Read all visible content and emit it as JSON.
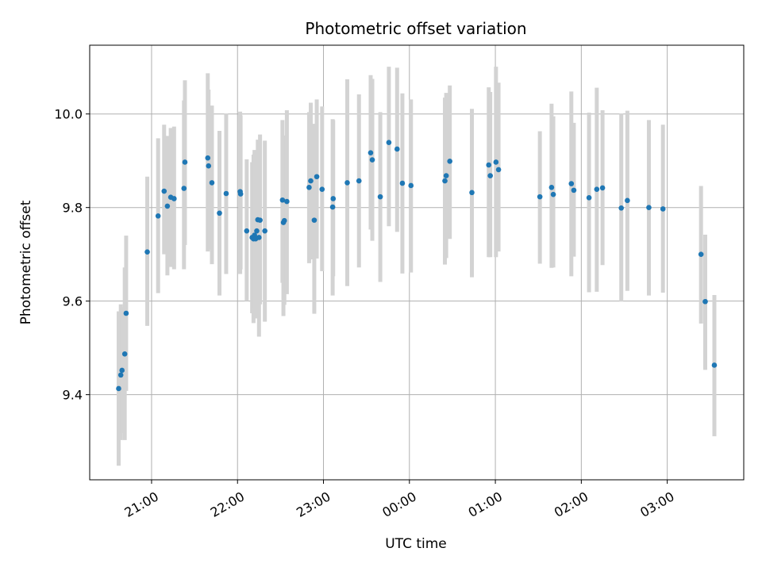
{
  "chart_data": {
    "type": "scatter",
    "title": "Photometric offset variation",
    "xlabel": "UTC time",
    "ylabel": "Photometric offset",
    "x_unit": "hours (UTC, continuing past midnight)",
    "xlim": [
      20.28,
      27.89
    ],
    "ylim": [
      9.218,
      10.147
    ],
    "x_ticks": [
      {
        "value": 21,
        "label": "21:00"
      },
      {
        "value": 22,
        "label": "22:00"
      },
      {
        "value": 23,
        "label": "23:00"
      },
      {
        "value": 24,
        "label": "00:00"
      },
      {
        "value": 25,
        "label": "01:00"
      },
      {
        "value": 26,
        "label": "02:00"
      },
      {
        "value": 27,
        "label": "03:00"
      }
    ],
    "y_ticks": [
      {
        "value": 9.4,
        "label": "9.4"
      },
      {
        "value": 9.6,
        "label": "9.6"
      },
      {
        "value": 9.8,
        "label": "9.8"
      },
      {
        "value": 10.0,
        "label": "10.0"
      }
    ],
    "grid": true,
    "colors": {
      "marker": "#1f77b4",
      "errorbar": "#d3d3d3",
      "grid": "#b0b0b0",
      "axes": "#000000"
    },
    "series": [
      {
        "x": [
          20.617,
          20.642,
          20.656,
          20.688,
          20.704,
          20.95,
          21.076,
          21.146,
          21.184,
          21.223,
          21.262,
          21.377,
          21.388,
          21.654,
          21.663,
          21.702,
          21.79,
          21.868,
          22.031,
          22.036,
          22.107,
          22.17,
          22.186,
          22.198,
          22.211,
          22.224,
          22.236,
          22.25,
          22.262,
          22.318,
          22.523,
          22.534,
          22.545,
          22.574,
          22.833,
          22.852,
          22.893,
          22.922,
          22.984,
          23.107,
          23.113,
          23.277,
          23.413,
          23.549,
          23.568,
          23.661,
          23.761,
          23.857,
          23.918,
          24.018,
          24.413,
          24.428,
          24.47,
          24.727,
          24.923,
          24.941,
          25.007,
          25.037,
          25.518,
          25.654,
          25.674,
          25.884,
          25.913,
          26.09,
          26.18,
          26.247,
          26.465,
          26.536,
          26.786,
          26.95,
          27.393,
          27.442,
          27.548
        ],
        "y": [
          9.413,
          9.442,
          9.452,
          9.487,
          9.574,
          9.705,
          9.782,
          9.835,
          9.803,
          9.822,
          9.819,
          9.841,
          9.897,
          9.906,
          9.889,
          9.853,
          9.788,
          9.83,
          9.834,
          9.829,
          9.75,
          9.736,
          9.733,
          9.741,
          9.733,
          9.75,
          9.774,
          9.736,
          9.773,
          9.75,
          9.816,
          9.768,
          9.772,
          9.813,
          9.843,
          9.857,
          9.773,
          9.866,
          9.839,
          9.801,
          9.819,
          9.853,
          9.857,
          9.917,
          9.902,
          9.823,
          9.939,
          9.925,
          9.852,
          9.847,
          9.857,
          9.868,
          9.899,
          9.832,
          9.891,
          9.868,
          9.897,
          9.881,
          9.823,
          9.843,
          9.828,
          9.851,
          9.837,
          9.821,
          9.839,
          9.842,
          9.799,
          9.815,
          9.8,
          9.797,
          9.7,
          9.599,
          9.463
        ],
        "y_low": [
          9.248,
          9.303,
          9.318,
          9.303,
          9.408,
          9.547,
          9.617,
          9.7,
          9.655,
          9.673,
          9.668,
          9.668,
          9.72,
          9.706,
          9.71,
          9.679,
          9.612,
          9.658,
          9.658,
          9.668,
          9.6,
          9.574,
          9.553,
          9.585,
          9.563,
          9.578,
          9.603,
          9.524,
          9.593,
          9.556,
          9.639,
          9.568,
          9.592,
          9.615,
          9.681,
          9.689,
          9.573,
          9.691,
          9.664,
          9.612,
          9.653,
          9.632,
          9.672,
          9.753,
          9.729,
          9.641,
          9.76,
          9.748,
          9.659,
          9.661,
          9.678,
          9.692,
          9.733,
          9.651,
          9.694,
          9.694,
          9.694,
          9.706,
          9.68,
          9.671,
          9.672,
          9.653,
          9.695,
          9.619,
          9.62,
          9.677,
          9.599,
          9.622,
          9.612,
          9.618,
          9.552,
          9.453,
          9.311
        ],
        "y_high": [
          9.578,
          9.593,
          9.587,
          9.672,
          9.74,
          9.866,
          9.948,
          9.977,
          9.953,
          9.97,
          9.973,
          10.029,
          10.072,
          10.087,
          10.052,
          10.018,
          9.964,
          10.001,
          10.005,
          9.997,
          9.903,
          9.897,
          9.913,
          9.923,
          9.914,
          9.913,
          9.945,
          9.937,
          9.956,
          9.943,
          9.987,
          9.951,
          9.954,
          10.008,
          10.004,
          10.024,
          9.979,
          10.031,
          10.016,
          9.989,
          9.987,
          10.074,
          10.042,
          10.083,
          10.075,
          10.004,
          10.101,
          10.099,
          10.044,
          10.031,
          10.035,
          10.045,
          10.061,
          10.011,
          10.057,
          10.047,
          10.101,
          10.067,
          9.963,
          10.022,
          9.995,
          10.048,
          9.981,
          10.003,
          10.056,
          10.008,
          10.001,
          10.007,
          9.987,
          9.977,
          9.846,
          9.742,
          9.613
        ]
      }
    ]
  }
}
